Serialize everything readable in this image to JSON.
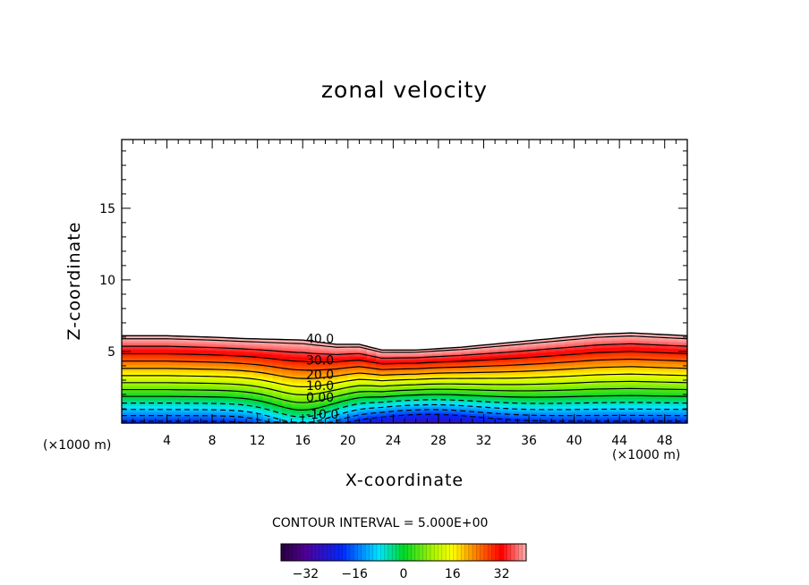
{
  "chart_data": {
    "type": "contour",
    "title": "zonal velocity",
    "xlabel": "X-coordinate",
    "ylabel": "Z-coordinate",
    "x_unit": "(×1000 m)",
    "xlim": [
      0,
      50
    ],
    "ylim": [
      0,
      19.8
    ],
    "x_ticks": [
      4,
      8,
      12,
      16,
      20,
      24,
      28,
      32,
      36,
      40,
      44,
      48
    ],
    "y_ticks": [
      5,
      10,
      15
    ],
    "contour_interval_text": "CONTOUR INTERVAL = 5.000E+00",
    "contour_interval": 5,
    "color_range": [
      -40,
      40
    ],
    "colorbar_ticks": [
      -32,
      -16,
      0,
      16,
      32
    ],
    "top_boundary": {
      "x": [
        0,
        4,
        8,
        11,
        16,
        19,
        21,
        23,
        26,
        30,
        34,
        38,
        42,
        45,
        50
      ],
      "z": [
        6.1,
        6.1,
        6.0,
        5.9,
        5.8,
        5.5,
        5.5,
        5.1,
        5.1,
        5.3,
        5.6,
        5.9,
        6.2,
        6.3,
        6.1
      ]
    },
    "contour_labels": [
      {
        "text": "40.0",
        "x": 16.3,
        "z": 5.6
      },
      {
        "text": "30.0",
        "x": 16.3,
        "z": 4.1
      },
      {
        "text": "20.0",
        "x": 16.3,
        "z": 3.1
      },
      {
        "text": "10.0",
        "x": 16.3,
        "z": 2.3
      },
      {
        "text": "0.00",
        "x": 16.3,
        "z": 1.5
      },
      {
        "text": "-10.0",
        "x": 16.3,
        "z": 0.3
      }
    ]
  }
}
